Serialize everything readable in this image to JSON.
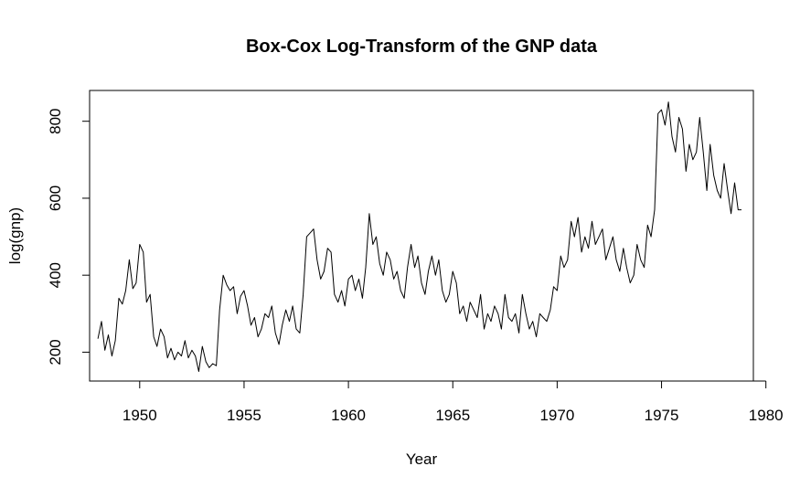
{
  "chart_data": {
    "type": "line",
    "title": "Box-Cox Log-Transform of the GNP data",
    "xlabel": "Year",
    "ylabel": "log(gnp)",
    "xlim": [
      1947.6,
      1979.4
    ],
    "ylim": [
      125,
      880
    ],
    "x_ticks": [
      1950,
      1955,
      1960,
      1965,
      1970,
      1975,
      1980
    ],
    "x_tick_labels": [
      "1950",
      "1955",
      "1960",
      "1965",
      "1970",
      "1975",
      "1980"
    ],
    "y_ticks": [
      200,
      400,
      600,
      800
    ],
    "y_tick_labels": [
      "200",
      "400",
      "600",
      "800"
    ],
    "grid": false,
    "legend": "none",
    "line_color": "#000000",
    "series": [
      {
        "x": [
          1948.0,
          1948.17,
          1948.33,
          1948.5,
          1948.67,
          1948.83,
          1949.0,
          1949.17,
          1949.33,
          1949.5,
          1949.67,
          1949.83,
          1950.0,
          1950.17,
          1950.33,
          1950.5,
          1950.67,
          1950.83,
          1951.0,
          1951.17,
          1951.33,
          1951.5,
          1951.67,
          1951.83,
          1952.0,
          1952.17,
          1952.33,
          1952.5,
          1952.67,
          1952.83,
          1953.0,
          1953.17,
          1953.33,
          1953.5,
          1953.67,
          1953.83,
          1954.0,
          1954.17,
          1954.33,
          1954.5,
          1954.67,
          1954.83,
          1955.0,
          1955.17,
          1955.33,
          1955.5,
          1955.67,
          1955.83,
          1956.0,
          1956.17,
          1956.33,
          1956.5,
          1956.67,
          1956.83,
          1957.0,
          1957.17,
          1957.33,
          1957.5,
          1957.67,
          1957.83,
          1958.0,
          1958.17,
          1958.33,
          1958.5,
          1958.67,
          1958.83,
          1959.0,
          1959.17,
          1959.33,
          1959.5,
          1959.67,
          1959.83,
          1960.0,
          1960.17,
          1960.33,
          1960.5,
          1960.67,
          1960.83,
          1961.0,
          1961.17,
          1961.33,
          1961.5,
          1961.67,
          1961.83,
          1962.0,
          1962.17,
          1962.33,
          1962.5,
          1962.67,
          1962.83,
          1963.0,
          1963.17,
          1963.33,
          1963.5,
          1963.67,
          1963.83,
          1964.0,
          1964.17,
          1964.33,
          1964.5,
          1964.67,
          1964.83,
          1965.0,
          1965.17,
          1965.33,
          1965.5,
          1965.67,
          1965.83,
          1966.0,
          1966.17,
          1966.33,
          1966.5,
          1966.67,
          1966.83,
          1967.0,
          1967.17,
          1967.33,
          1967.5,
          1967.67,
          1967.83,
          1968.0,
          1968.17,
          1968.33,
          1968.5,
          1968.67,
          1968.83,
          1969.0,
          1969.17,
          1969.33,
          1969.5,
          1969.67,
          1969.83,
          1970.0,
          1970.17,
          1970.33,
          1970.5,
          1970.67,
          1970.83,
          1971.0,
          1971.17,
          1971.33,
          1971.5,
          1971.67,
          1971.83,
          1972.0,
          1972.17,
          1972.33,
          1972.5,
          1972.67,
          1972.83,
          1973.0,
          1973.17,
          1973.33,
          1973.5,
          1973.67,
          1973.83,
          1974.0,
          1974.17,
          1974.33,
          1974.5,
          1974.67,
          1974.83,
          1975.0,
          1975.17,
          1975.33,
          1975.5,
          1975.67,
          1975.83,
          1976.0,
          1976.17,
          1976.33,
          1976.5,
          1976.67,
          1976.83,
          1977.0,
          1977.17,
          1977.33,
          1977.5,
          1977.67,
          1977.83,
          1978.0,
          1978.17,
          1978.33,
          1978.5,
          1978.67,
          1978.83
        ],
        "values": [
          235,
          280,
          205,
          245,
          190,
          230,
          340,
          325,
          360,
          440,
          365,
          380,
          480,
          460,
          330,
          350,
          240,
          215,
          260,
          240,
          185,
          210,
          180,
          200,
          190,
          230,
          185,
          205,
          190,
          150,
          215,
          175,
          160,
          170,
          165,
          310,
          400,
          375,
          360,
          370,
          300,
          345,
          360,
          320,
          270,
          290,
          240,
          260,
          300,
          290,
          320,
          250,
          220,
          270,
          310,
          280,
          320,
          260,
          250,
          350,
          500,
          510,
          520,
          440,
          390,
          410,
          470,
          460,
          350,
          330,
          360,
          320,
          390,
          400,
          360,
          390,
          340,
          420,
          560,
          480,
          500,
          430,
          400,
          460,
          440,
          390,
          410,
          360,
          340,
          420,
          480,
          420,
          450,
          380,
          350,
          410,
          450,
          400,
          440,
          360,
          330,
          350,
          410,
          380,
          300,
          320,
          280,
          330,
          310,
          290,
          350,
          260,
          300,
          280,
          320,
          300,
          260,
          350,
          290,
          280,
          300,
          250,
          350,
          300,
          260,
          280,
          240,
          300,
          290,
          280,
          310,
          370,
          360,
          450,
          420,
          440,
          540,
          500,
          550,
          460,
          500,
          470,
          540,
          480,
          500,
          520,
          440,
          470,
          500,
          440,
          410,
          470,
          420,
          380,
          400,
          480,
          440,
          420,
          530,
          500,
          570,
          820,
          830,
          790,
          850,
          760,
          720,
          810,
          780,
          670,
          740,
          700,
          720,
          810,
          720,
          620,
          740,
          660,
          620,
          600,
          690,
          620,
          560,
          640,
          570,
          570
        ]
      }
    ]
  }
}
